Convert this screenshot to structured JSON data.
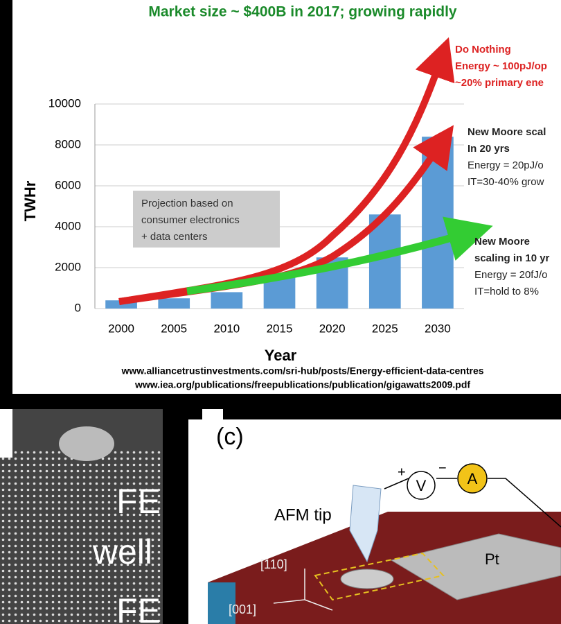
{
  "chart_data": {
    "type": "bar",
    "title": "Market size ~ $400B in 2017; growing rapidly",
    "categories": [
      "2000",
      "2005",
      "2010",
      "2015",
      "2020",
      "2025",
      "2030"
    ],
    "values": [
      400,
      500,
      800,
      1700,
      2500,
      4600,
      8400
    ],
    "color": "#5b9bd5",
    "ylim": [
      0,
      10000
    ],
    "yticks": [
      0,
      2000,
      4000,
      6000,
      8000,
      10000
    ],
    "grid": true,
    "x_label": "Year",
    "y_label": "TWHr",
    "note": [
      "Projection based on",
      "consumer electronics",
      "+ data centers"
    ],
    "annotations": [
      [
        "Do Nothing",
        "Energy ~ 100pJ/op",
        "~20% primary ene"
      ],
      [
        "New Moore scal",
        "In 20 yrs",
        "Energy = 20pJ/o",
        "IT=30-40% grow"
      ],
      [
        "New Moore",
        "scaling in 10 yr",
        "Energy = 20fJ/o",
        "IT=hold to 8%"
      ]
    ],
    "sources": [
      "www.alliancetrustinvestments.com/sri-hub/posts/Energy-efficient-data-centres",
      "www.iea.org/publications/freepublications/publication/gigawatts2009.pdf"
    ]
  },
  "panels": {
    "left": [
      "FE",
      "well",
      "FE"
    ],
    "right": {
      "label": "(c)",
      "tip": "AFM tip",
      "plus": "+",
      "minus": "−",
      "volt": "V",
      "amp": "A",
      "electrode": "Pt",
      "axis_a": "[110]",
      "axis_b": "[001]"
    }
  }
}
